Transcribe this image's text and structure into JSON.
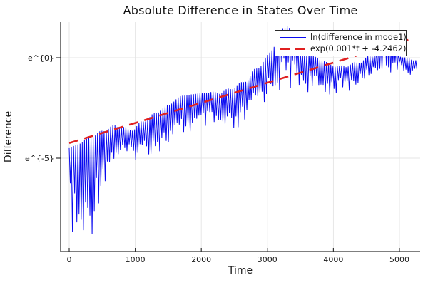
{
  "chart_data": {
    "type": "line",
    "title": "Absolute Difference in States Over Time",
    "xlabel": "Time",
    "ylabel": "Difference",
    "x_ticks": [
      0,
      1000,
      2000,
      3000,
      4000,
      5000
    ],
    "y_ticks": [
      {
        "ln": 0,
        "label": "e^{0}"
      },
      {
        "ln": -5,
        "label": "e^{-5}"
      }
    ],
    "x_range": [
      -130,
      5310
    ],
    "y_ln_range": [
      -9.65,
      1.77
    ],
    "y_scale": "log (natural)",
    "grid": true,
    "grid_color": "#e4e4e4",
    "spine_color": "#333333",
    "background": "#ffffff",
    "legend_position": "top-right",
    "series": [
      {
        "name": "ln(difference in mode1)",
        "color": "#0a0af0",
        "style": "solid",
        "model": "oscillating signal: ln-value dips toward lower envelope every half-period (zero crossings), upper envelope listed below",
        "dip_period_t": 33,
        "t_start": 0,
        "t_end": 5250,
        "envelope_t_lnTop_lnBottom": [
          [
            0,
            -4.5,
            -8.0
          ],
          [
            100,
            -4.35,
            -9.3
          ],
          [
            200,
            -4.2,
            -9.6
          ],
          [
            300,
            -4.0,
            -9.0
          ],
          [
            400,
            -3.85,
            -7.4
          ],
          [
            500,
            -3.65,
            -6.2
          ],
          [
            600,
            -3.5,
            -5.5
          ],
          [
            700,
            -3.4,
            -5.1
          ],
          [
            800,
            -3.45,
            -5.0
          ],
          [
            900,
            -3.6,
            -5.1
          ],
          [
            1000,
            -3.5,
            -5.0
          ],
          [
            1100,
            -3.2,
            -4.8
          ],
          [
            1200,
            -3.0,
            -4.7
          ],
          [
            1300,
            -2.8,
            -4.6
          ],
          [
            1400,
            -2.55,
            -4.5
          ],
          [
            1500,
            -2.4,
            -4.4
          ],
          [
            1600,
            -2.1,
            -4.2
          ],
          [
            1700,
            -1.9,
            -3.9
          ],
          [
            1800,
            -1.85,
            -3.8
          ],
          [
            1900,
            -1.8,
            -3.7
          ],
          [
            2000,
            -1.78,
            -3.6
          ],
          [
            2100,
            -1.72,
            -3.5
          ],
          [
            2200,
            -1.74,
            -3.6
          ],
          [
            2300,
            -1.74,
            -3.8
          ],
          [
            2400,
            -1.6,
            -3.9
          ],
          [
            2500,
            -1.45,
            -4.0
          ],
          [
            2600,
            -1.3,
            -3.6
          ],
          [
            2700,
            -1.05,
            -3.0
          ],
          [
            2800,
            -0.65,
            -2.5
          ],
          [
            2900,
            -0.35,
            -2.2
          ],
          [
            3000,
            0.05,
            -1.9
          ],
          [
            3100,
            0.6,
            -1.6
          ],
          [
            3200,
            1.3,
            -1.4
          ],
          [
            3300,
            1.65,
            -1.3
          ],
          [
            3400,
            1.1,
            -1.4
          ],
          [
            3500,
            0.5,
            -1.5
          ],
          [
            3600,
            0.25,
            -1.6
          ],
          [
            3700,
            0.1,
            -1.8
          ],
          [
            3800,
            -0.1,
            -1.8
          ],
          [
            3900,
            -0.25,
            -1.75
          ],
          [
            4000,
            -0.4,
            -1.7
          ],
          [
            4100,
            -0.45,
            -1.65
          ],
          [
            4200,
            -0.4,
            -1.6
          ],
          [
            4300,
            -0.3,
            -1.5
          ],
          [
            4400,
            -0.2,
            -1.3
          ],
          [
            4500,
            -0.05,
            -1.0
          ],
          [
            4600,
            0.15,
            -0.8
          ],
          [
            4700,
            0.7,
            -0.7
          ],
          [
            4800,
            1.55,
            -0.65
          ],
          [
            4900,
            0.9,
            -0.6
          ],
          [
            5000,
            0.15,
            -0.7
          ],
          [
            5100,
            -0.05,
            -0.8
          ],
          [
            5250,
            -0.1,
            -0.8
          ]
        ]
      },
      {
        "name": "exp(0.001*t + -4.2462)",
        "color": "#e02020",
        "style": "dashed",
        "ln_slope": 0.001,
        "ln_intercept": -4.2462,
        "t_start": 0,
        "t_end": 5150
      }
    ]
  }
}
